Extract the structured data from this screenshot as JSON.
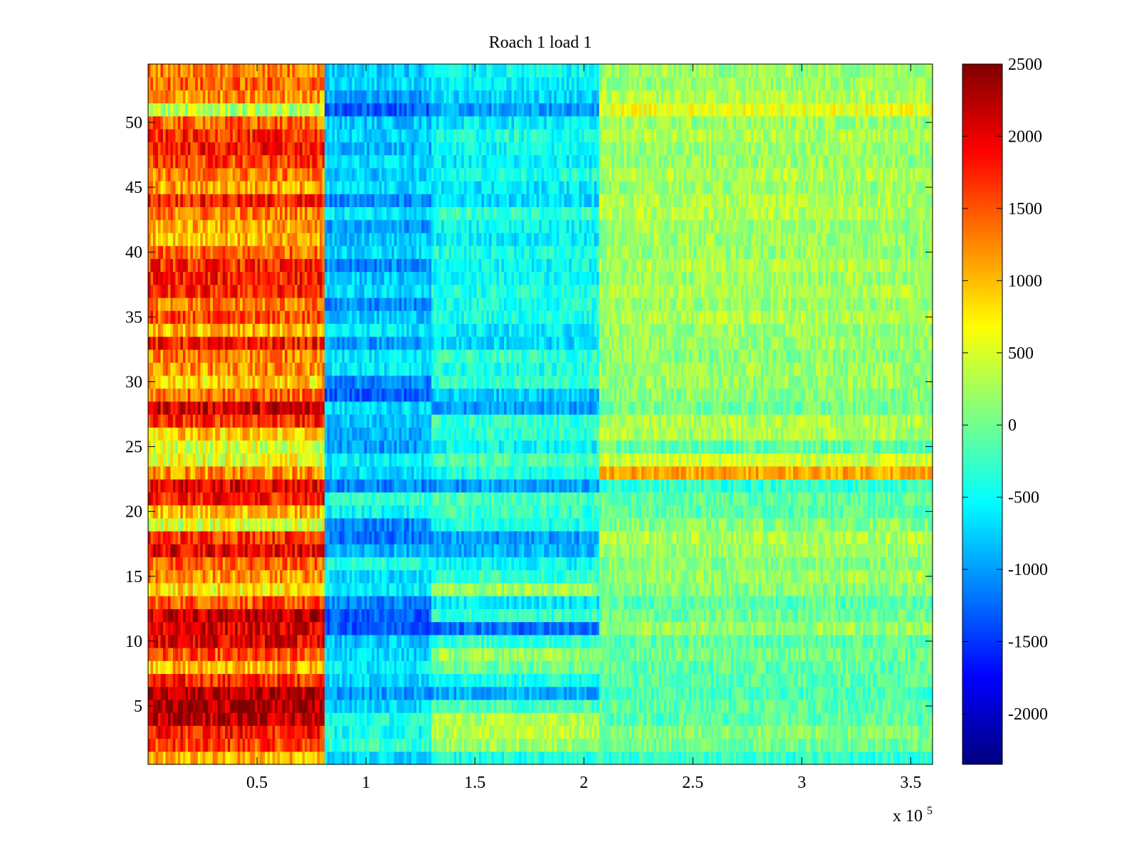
{
  "chart_data": {
    "type": "heatmap",
    "title": "Roach 1 load 1",
    "xlabel": "",
    "ylabel": "",
    "xlim": [
      0,
      360000
    ],
    "ylim": [
      0.5,
      54.5
    ],
    "x_tick_values": [
      50000,
      100000,
      150000,
      200000,
      250000,
      300000,
      350000
    ],
    "x_tick_labels": [
      "0.5",
      "1",
      "1.5",
      "2",
      "2.5",
      "3",
      "3.5"
    ],
    "x_exponent_label": {
      "base": "x 10",
      "exponent": "5"
    },
    "y_tick_values": [
      5,
      10,
      15,
      20,
      25,
      30,
      35,
      40,
      45,
      50
    ],
    "y_tick_labels": [
      "5",
      "10",
      "15",
      "20",
      "25",
      "30",
      "35",
      "40",
      "45",
      "50"
    ],
    "colormap": "jet",
    "clim": [
      -2350,
      2500
    ],
    "colorbar": {
      "tick_values": [
        2500,
        2000,
        1500,
        1000,
        500,
        0,
        -500,
        -1000,
        -1500,
        -2000
      ],
      "tick_labels": [
        "2500",
        "2000",
        "1500",
        "1000",
        "500",
        "0",
        "-500",
        "-1000",
        "-1500",
        "-2000"
      ],
      "location": "right"
    },
    "segments": [
      {
        "name": "segment-1",
        "x_range": [
          0,
          81000
        ]
      },
      {
        "name": "segment-2",
        "x_range": [
          81000,
          130000
        ]
      },
      {
        "name": "segment-3",
        "x_range": [
          130000,
          207000
        ]
      },
      {
        "name": "segment-4",
        "x_range": [
          207000,
          360000
        ]
      }
    ],
    "channels": 54,
    "row_mean_values": {
      "segment-1": [
        1000,
        1600,
        1800,
        2200,
        2300,
        2300,
        1700,
        1000,
        1500,
        2000,
        2100,
        2200,
        1500,
        800,
        1200,
        1400,
        2000,
        1700,
        500,
        1000,
        1800,
        2000,
        1200,
        600,
        500,
        900,
        1700,
        2100,
        1400,
        900,
        1200,
        1300,
        1800,
        1000,
        1500,
        1300,
        1700,
        1800,
        1700,
        1400,
        1000,
        1100,
        1300,
        1800,
        1100,
        1300,
        1600,
        1800,
        1700,
        1400,
        300,
        1200,
        1400,
        1300
      ],
      "segment-2": [
        -700,
        -300,
        -450,
        -400,
        -700,
        -1000,
        -700,
        -600,
        -700,
        -800,
        -1300,
        -1300,
        -1100,
        -600,
        -700,
        -400,
        -900,
        -1200,
        -1100,
        -500,
        -300,
        -1100,
        -700,
        -600,
        -1000,
        -900,
        -800,
        -700,
        -1300,
        -1100,
        -600,
        -600,
        -1000,
        -600,
        -800,
        -1100,
        -700,
        -800,
        -1100,
        -700,
        -800,
        -1000,
        -600,
        -1100,
        -700,
        -800,
        -700,
        -900,
        -700,
        -800,
        -1300,
        -1000,
        -700,
        -800
      ],
      "segment-3": [
        -400,
        200,
        350,
        300,
        -200,
        -900,
        -400,
        0,
        200,
        -300,
        -1200,
        -300,
        -600,
        200,
        -300,
        -500,
        -900,
        -1000,
        -400,
        -300,
        -200,
        -1000,
        -400,
        -200,
        -500,
        -300,
        -300,
        -1000,
        -800,
        -300,
        -400,
        -300,
        -700,
        -600,
        -400,
        -400,
        -400,
        -500,
        -500,
        -400,
        -600,
        -500,
        -300,
        -700,
        -600,
        -400,
        -600,
        -500,
        -400,
        -600,
        -1000,
        -700,
        -600,
        -500
      ],
      "segment-4": [
        -300,
        0,
        100,
        -100,
        -100,
        -200,
        -100,
        -100,
        0,
        -100,
        200,
        0,
        -100,
        100,
        200,
        100,
        200,
        300,
        100,
        -100,
        -100,
        -300,
        1100,
        450,
        -100,
        300,
        300,
        0,
        100,
        200,
        200,
        100,
        200,
        200,
        300,
        200,
        300,
        200,
        300,
        200,
        200,
        200,
        300,
        300,
        200,
        300,
        200,
        200,
        300,
        200,
        600,
        300,
        200,
        200
      ]
    }
  }
}
